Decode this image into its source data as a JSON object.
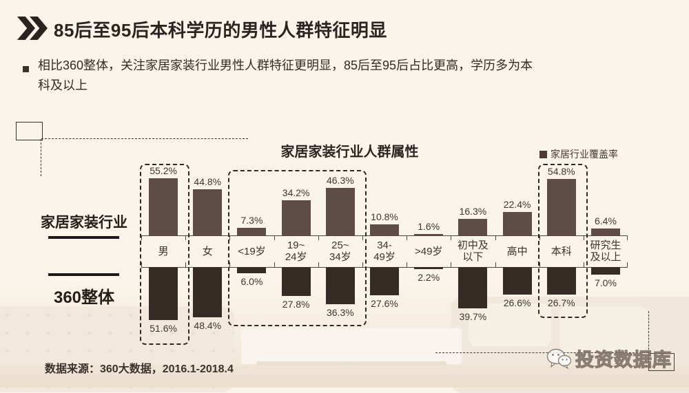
{
  "slide": {
    "title": "85后至95后本科学历的男性人群特征明显",
    "bullet_lines": [
      "相比360整体，关注家居家装行业男性人群特征更明显，85后至95后占比更高，学历多为本",
      "科及以上"
    ],
    "source": "数据来源：360大数据，2016.1-2018.4",
    "watermark": "投资数据库"
  },
  "chart": {
    "title": "家居家装行业人群属性",
    "legend_label": "家居行业覆盖率"
  },
  "chart_data": {
    "type": "bar",
    "orientation": "diverging-vertical",
    "title": "家居家装行业人群属性",
    "legend": {
      "label": "家居行业覆盖率",
      "position": "top-right"
    },
    "value_suffix": "%",
    "categories": [
      "男",
      "女",
      "<19岁",
      "19~24岁",
      "25~34岁",
      "34-49岁",
      ">49岁",
      "初中及以下",
      "高中",
      "本科",
      "研究生及以上"
    ],
    "series": [
      {
        "name": "家居家装行业",
        "direction": "up",
        "values": [
          55.2,
          44.8,
          7.3,
          34.2,
          46.3,
          10.8,
          1.6,
          16.3,
          22.4,
          54.8,
          6.4
        ]
      },
      {
        "name": "360整体",
        "direction": "down",
        "values": [
          51.6,
          48.4,
          6.0,
          27.8,
          36.3,
          27.6,
          2.2,
          39.7,
          26.6,
          26.7,
          7.0
        ]
      }
    ],
    "highlighted_categories": [
      "男",
      "<19岁",
      "19~24岁",
      "25~34岁",
      "本科"
    ]
  },
  "colors": {
    "background": "#fbf4ea",
    "bar_top": "#604c46",
    "bar_bottom": "#362b25",
    "axis_line": "#4e453e",
    "legend_square": "#4d3a31",
    "accent_dark": "#29221e"
  }
}
